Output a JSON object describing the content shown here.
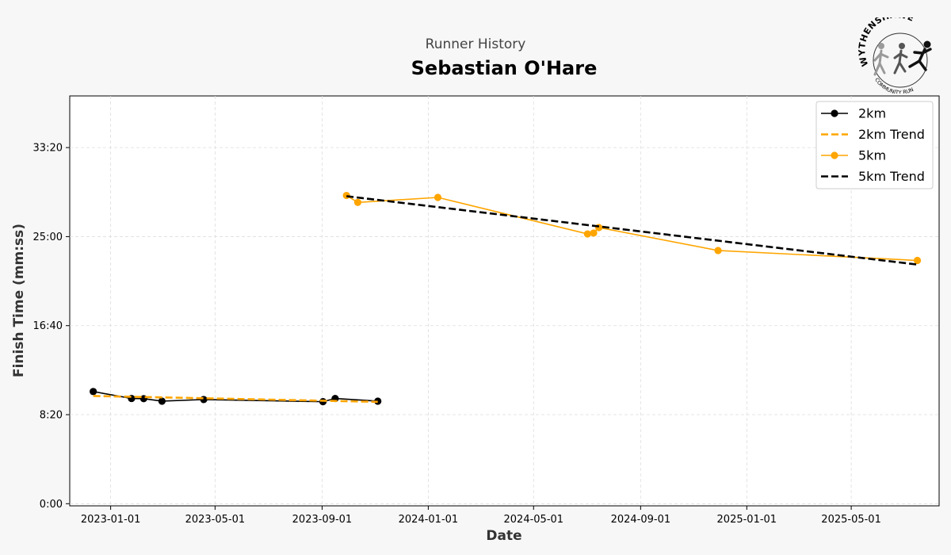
{
  "header": {
    "subtitle": "Runner History",
    "title": "Sebastian O'Hare"
  },
  "logo": {
    "top_text": "WYTHENSHAWE",
    "bottom_text": "COMMUNITY RUN",
    "icon": "running-figures-logo"
  },
  "colors": {
    "series_2km": "#000000",
    "series_5km": "#FFA500",
    "trend_2km": "#FFA500",
    "trend_5km": "#000000",
    "background": "#f7f7f7",
    "plot_background": "#ffffff",
    "grid": "#dddddd"
  },
  "chart_data": {
    "type": "line",
    "title": "Sebastian O'Hare",
    "subtitle": "Runner History",
    "xlabel": "Date",
    "ylabel": "Finish Time (mm:ss)",
    "x_ticks": [
      "2023-01-01",
      "2023-05-01",
      "2023-09-01",
      "2024-01-01",
      "2024-05-01",
      "2024-09-01",
      "2025-01-01",
      "2025-05-01"
    ],
    "y_ticks": [
      "0:00",
      "8:20",
      "16:40",
      "25:00",
      "33:20"
    ],
    "y_tick_seconds": [
      0,
      500,
      1000,
      1500,
      2000
    ],
    "xlim": [
      "2022-11-15",
      "2025-08-10"
    ],
    "ylim_seconds": [
      -12,
      2290
    ],
    "grid": true,
    "legend_position": "top-right",
    "series": [
      {
        "name": "2km",
        "style": "solid-markers",
        "color": "#000000",
        "points": [
          {
            "date": "2022-12-12",
            "seconds": 630
          },
          {
            "date": "2023-01-25",
            "seconds": 591
          },
          {
            "date": "2023-02-08",
            "seconds": 590
          },
          {
            "date": "2023-03-01",
            "seconds": 576
          },
          {
            "date": "2023-04-18",
            "seconds": 585
          },
          {
            "date": "2023-09-02",
            "seconds": 573
          },
          {
            "date": "2023-09-16",
            "seconds": 591
          },
          {
            "date": "2023-11-04",
            "seconds": 576
          }
        ]
      },
      {
        "name": "2km Trend",
        "style": "dashed",
        "color": "#FFA500",
        "points": [
          {
            "date": "2022-12-12",
            "seconds": 605
          },
          {
            "date": "2023-11-04",
            "seconds": 572
          }
        ]
      },
      {
        "name": "5km",
        "style": "solid-markers",
        "color": "#FFA500",
        "points": [
          {
            "date": "2023-09-29",
            "seconds": 1731
          },
          {
            "date": "2023-10-12",
            "seconds": 1692
          },
          {
            "date": "2024-01-12",
            "seconds": 1720
          },
          {
            "date": "2024-07-02",
            "seconds": 1515
          },
          {
            "date": "2024-07-09",
            "seconds": 1520
          },
          {
            "date": "2024-07-15",
            "seconds": 1551
          },
          {
            "date": "2024-11-29",
            "seconds": 1422
          },
          {
            "date": "2025-07-16",
            "seconds": 1366
          }
        ]
      },
      {
        "name": "5km Trend",
        "style": "dashed",
        "color": "#000000",
        "points": [
          {
            "date": "2023-09-29",
            "seconds": 1727
          },
          {
            "date": "2025-07-16",
            "seconds": 1343
          }
        ]
      }
    ]
  }
}
